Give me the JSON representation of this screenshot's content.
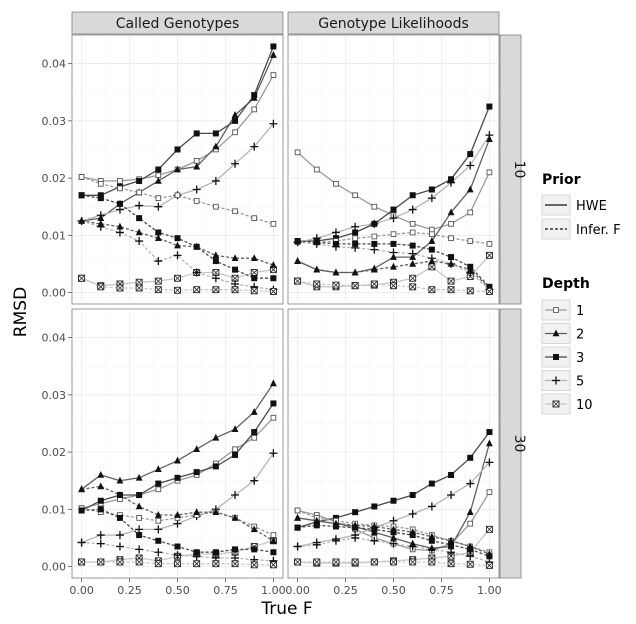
{
  "chart_data": {
    "type": "line",
    "x_label": "True F",
    "y_label": "RMSD",
    "x_ticks": [
      "0.00",
      "0.25",
      "0.50",
      "0.75",
      "1.00"
    ],
    "y_ticks": [
      "0.00",
      "0.01",
      "0.02",
      "0.03",
      "0.04"
    ],
    "xlim": [
      -0.05,
      1.05
    ],
    "ylim": [
      -0.002,
      0.045
    ],
    "x": [
      0,
      0.1,
      0.2,
      0.3,
      0.4,
      0.5,
      0.6,
      0.7,
      0.8,
      0.9,
      1.0
    ],
    "column_strips": [
      "Called Genotypes",
      "Genotype Likelihoods"
    ],
    "row_strips": [
      "10",
      "30"
    ],
    "legend": {
      "prior_title": "Prior",
      "prior_items": [
        {
          "label": "HWE",
          "dash": "none"
        },
        {
          "label": "Infer. F",
          "dash": "3,2"
        }
      ],
      "depth_title": "Depth",
      "depth_items": [
        {
          "label": "1",
          "marker": "sym1",
          "color": "#9a9a9a"
        },
        {
          "label": "2",
          "marker": "sym2",
          "color": "#606060"
        },
        {
          "label": "3",
          "marker": "sym3",
          "color": "#4a4a4a"
        },
        {
          "label": "5",
          "marker": "sym5",
          "color": "#b5b5b5"
        },
        {
          "label": "10",
          "marker": "sym10",
          "color": "#c8c8c8"
        }
      ]
    },
    "panels": [
      {
        "row": 0,
        "col": 0,
        "series": [
          {
            "depth": "1",
            "prior": "HWE",
            "values": [
              0.0202,
              0.0195,
              0.0195,
              0.0198,
              0.0205,
              0.0215,
              0.023,
              0.025,
              0.028,
              0.032,
              0.038
            ]
          },
          {
            "depth": "2",
            "prior": "HWE",
            "values": [
              0.0125,
              0.013,
              0.0155,
              0.0175,
              0.0195,
              0.0215,
              0.022,
              0.0255,
              0.031,
              0.034,
              0.0415
            ]
          },
          {
            "depth": "3",
            "prior": "HWE",
            "values": [
              0.017,
              0.017,
              0.0185,
              0.0195,
              0.0215,
              0.025,
              0.0278,
              0.0278,
              0.03,
              0.0345,
              0.043
            ]
          },
          {
            "depth": "5",
            "prior": "HWE",
            "values": [
              0.0125,
              0.0135,
              0.0145,
              0.0152,
              0.015,
              0.017,
              0.018,
              0.0195,
              0.0225,
              0.0255,
              0.0295
            ]
          },
          {
            "depth": "10",
            "prior": "HWE",
            "values": [
              0.0025,
              0.0012,
              0.0015,
              0.0018,
              0.002,
              0.0025,
              0.0035,
              0.0035,
              0.0025,
              0.0035,
              0.004
            ]
          },
          {
            "depth": "1",
            "prior": "Infer. F",
            "values": [
              0.0202,
              0.019,
              0.0182,
              0.0175,
              0.0165,
              0.017,
              0.016,
              0.015,
              0.0142,
              0.013,
              0.012
            ]
          },
          {
            "depth": "2",
            "prior": "Infer. F",
            "values": [
              0.0125,
              0.012,
              0.0115,
              0.0105,
              0.0095,
              0.0082,
              0.008,
              0.0065,
              0.006,
              0.006,
              0.0048
            ]
          },
          {
            "depth": "3",
            "prior": "Infer. F",
            "values": [
              0.017,
              0.0165,
              0.0155,
              0.013,
              0.0105,
              0.0095,
              0.008,
              0.0055,
              0.004,
              0.0025,
              0.0025
            ]
          },
          {
            "depth": "5",
            "prior": "Infer. F",
            "values": [
              0.0125,
              0.0115,
              0.0105,
              0.009,
              0.0055,
              0.0065,
              0.0035,
              0.0025,
              0.0015,
              0.001,
              0.0005
            ]
          },
          {
            "depth": "10",
            "prior": "Infer. F",
            "values": [
              0.0025,
              0.001,
              0.0008,
              0.0008,
              0.0005,
              0.0004,
              0.0005,
              0.0005,
              0.0005,
              0.0003,
              0.0002
            ]
          }
        ]
      },
      {
        "row": 0,
        "col": 1,
        "series": [
          {
            "depth": "1",
            "prior": "HWE",
            "values": [
              0.0245,
              0.0215,
              0.019,
              0.017,
              0.015,
              0.0135,
              0.012,
              0.011,
              0.012,
              0.014,
              0.021
            ]
          },
          {
            "depth": "2",
            "prior": "HWE",
            "values": [
              0.0055,
              0.004,
              0.0035,
              0.0035,
              0.0042,
              0.0062,
              0.0062,
              0.009,
              0.014,
              0.018,
              0.0268
            ]
          },
          {
            "depth": "3",
            "prior": "HWE",
            "values": [
              0.009,
              0.009,
              0.0095,
              0.0105,
              0.012,
              0.0145,
              0.017,
              0.018,
              0.0198,
              0.0242,
              0.0325
            ]
          },
          {
            "depth": "5",
            "prior": "HWE",
            "values": [
              0.0088,
              0.0095,
              0.0105,
              0.0115,
              0.012,
              0.013,
              0.0145,
              0.0165,
              0.0192,
              0.0222,
              0.0275
            ]
          },
          {
            "depth": "10",
            "prior": "HWE",
            "values": [
              0.002,
              0.001,
              0.001,
              0.0012,
              0.0013,
              0.0018,
              0.0025,
              0.0045,
              0.002,
              0.0028,
              0.0065
            ]
          },
          {
            "depth": "1",
            "prior": "Infer. F",
            "values": [
              0.0088,
              0.0088,
              0.009,
              0.0095,
              0.0098,
              0.0102,
              0.0105,
              0.0102,
              0.0095,
              0.009,
              0.0085
            ]
          },
          {
            "depth": "2",
            "prior": "Infer. F",
            "values": [
              0.0055,
              0.004,
              0.0035,
              0.0035,
              0.004,
              0.0045,
              0.005,
              0.0055,
              0.005,
              0.004,
              0.0008
            ]
          },
          {
            "depth": "3",
            "prior": "Infer. F",
            "values": [
              0.009,
              0.0088,
              0.0085,
              0.0085,
              0.0085,
              0.0085,
              0.0082,
              0.0075,
              0.0062,
              0.0045,
              0.001
            ]
          },
          {
            "depth": "5",
            "prior": "Infer. F",
            "values": [
              0.0088,
              0.0085,
              0.008,
              0.0078,
              0.0075,
              0.007,
              0.0068,
              0.006,
              0.005,
              0.0035,
              0.0005
            ]
          },
          {
            "depth": "10",
            "prior": "Infer. F",
            "values": [
              0.002,
              0.0015,
              0.0013,
              0.0012,
              0.0015,
              0.0012,
              0.001,
              0.0005,
              0.0005,
              0.0003,
              0.0002
            ]
          }
        ]
      },
      {
        "row": 1,
        "col": 0,
        "series": [
          {
            "depth": "1",
            "prior": "HWE",
            "values": [
              0.0102,
              0.011,
              0.0118,
              0.0125,
              0.0135,
              0.015,
              0.016,
              0.018,
              0.0205,
              0.0225,
              0.026
            ]
          },
          {
            "depth": "2",
            "prior": "HWE",
            "values": [
              0.0135,
              0.016,
              0.015,
              0.0155,
              0.017,
              0.0185,
              0.0205,
              0.0225,
              0.024,
              0.027,
              0.032
            ]
          },
          {
            "depth": "3",
            "prior": "HWE",
            "values": [
              0.0098,
              0.0115,
              0.0125,
              0.0125,
              0.0145,
              0.0155,
              0.0165,
              0.0175,
              0.0195,
              0.0235,
              0.0285
            ]
          },
          {
            "depth": "5",
            "prior": "HWE",
            "values": [
              0.0042,
              0.0055,
              0.0055,
              0.0065,
              0.0065,
              0.0075,
              0.0088,
              0.01,
              0.0125,
              0.015,
              0.0198
            ]
          },
          {
            "depth": "10",
            "prior": "HWE",
            "values": [
              0.0008,
              0.0008,
              0.0012,
              0.0015,
              0.001,
              0.0018,
              0.0022,
              0.0022,
              0.0025,
              0.0035,
              0.0045
            ]
          },
          {
            "depth": "1",
            "prior": "Infer. F",
            "values": [
              0.0102,
              0.0095,
              0.009,
              0.0085,
              0.008,
              0.0085,
              0.009,
              0.0095,
              0.0085,
              0.007,
              0.0055
            ]
          },
          {
            "depth": "2",
            "prior": "Infer. F",
            "values": [
              0.0135,
              0.014,
              0.0125,
              0.0105,
              0.009,
              0.009,
              0.0095,
              0.0095,
              0.0085,
              0.0065,
              0.0045
            ]
          },
          {
            "depth": "3",
            "prior": "Infer. F",
            "values": [
              0.0098,
              0.01,
              0.0085,
              0.0055,
              0.0045,
              0.0035,
              0.0025,
              0.0025,
              0.003,
              0.003,
              0.0025
            ]
          },
          {
            "depth": "5",
            "prior": "Infer. F",
            "values": [
              0.0042,
              0.004,
              0.0035,
              0.003,
              0.0025,
              0.002,
              0.0018,
              0.0015,
              0.0015,
              0.0012,
              0.001
            ]
          },
          {
            "depth": "10",
            "prior": "Infer. F",
            "values": [
              0.0008,
              0.0008,
              0.0008,
              0.0008,
              0.0005,
              0.0005,
              0.0005,
              0.0005,
              0.0005,
              0.0003,
              0.0003
            ]
          }
        ]
      },
      {
        "row": 1,
        "col": 1,
        "series": [
          {
            "depth": "1",
            "prior": "HWE",
            "values": [
              0.0098,
              0.009,
              0.0078,
              0.0065,
              0.005,
              0.004,
              0.003,
              0.0028,
              0.004,
              0.0075,
              0.013
            ]
          },
          {
            "depth": "2",
            "prior": "HWE",
            "values": [
              0.0085,
              0.008,
              0.0075,
              0.007,
              0.006,
              0.005,
              0.004,
              0.0032,
              0.0035,
              0.0095,
              0.0215
            ]
          },
          {
            "depth": "3",
            "prior": "HWE",
            "values": [
              0.0068,
              0.0078,
              0.0085,
              0.0095,
              0.0105,
              0.0115,
              0.0125,
              0.0145,
              0.016,
              0.019,
              0.0235
            ]
          },
          {
            "depth": "5",
            "prior": "HWE",
            "values": [
              0.0035,
              0.0042,
              0.0048,
              0.0055,
              0.0068,
              0.008,
              0.0092,
              0.0105,
              0.0125,
              0.0145,
              0.0182
            ]
          },
          {
            "depth": "10",
            "prior": "HWE",
            "values": [
              0.0008,
              0.0006,
              0.0006,
              0.0006,
              0.0008,
              0.001,
              0.0012,
              0.0015,
              0.0018,
              0.0025,
              0.0065
            ]
          },
          {
            "depth": "1",
            "prior": "Infer. F",
            "values": [
              0.0098,
              0.0085,
              0.008,
              0.0075,
              0.0072,
              0.007,
              0.0065,
              0.0055,
              0.0045,
              0.0035,
              0.0025
            ]
          },
          {
            "depth": "2",
            "prior": "Infer. F",
            "values": [
              0.0085,
              0.008,
              0.0075,
              0.0072,
              0.007,
              0.0065,
              0.006,
              0.0052,
              0.0045,
              0.0035,
              0.0022
            ]
          },
          {
            "depth": "3",
            "prior": "Infer. F",
            "values": [
              0.0068,
              0.0072,
              0.007,
              0.0068,
              0.0065,
              0.006,
              0.0055,
              0.0045,
              0.0038,
              0.003,
              0.0018
            ]
          },
          {
            "depth": "5",
            "prior": "Infer. F",
            "values": [
              0.0035,
              0.0038,
              0.0045,
              0.005,
              0.0045,
              0.004,
              0.0035,
              0.003,
              0.0025,
              0.0018,
              0.0008
            ]
          },
          {
            "depth": "10",
            "prior": "Infer. F",
            "values": [
              0.0008,
              0.0008,
              0.0008,
              0.0008,
              0.0008,
              0.0008,
              0.0008,
              0.0008,
              0.0005,
              0.0004,
              0.0002
            ]
          }
        ]
      }
    ]
  }
}
